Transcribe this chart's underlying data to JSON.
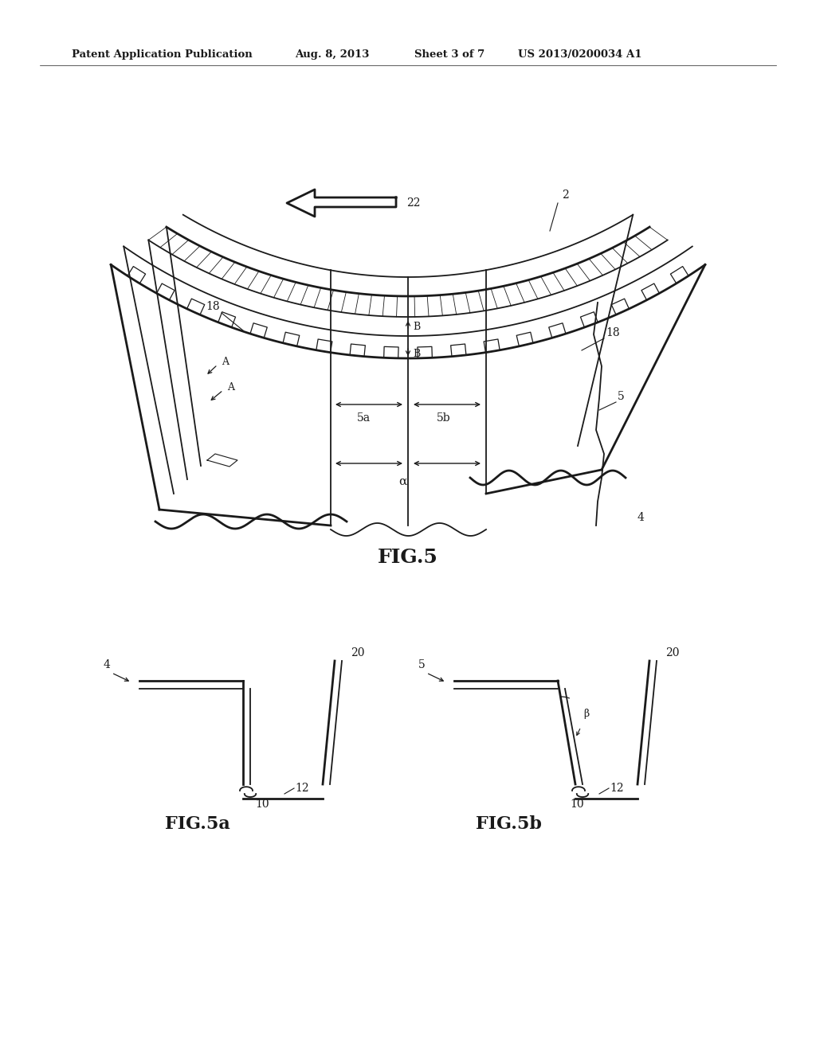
{
  "bg_color": "#ffffff",
  "line_color": "#1a1a1a",
  "header_text": "Patent Application Publication",
  "header_date": "Aug. 8, 2013",
  "header_sheet": "Sheet 3 of 7",
  "header_patent": "US 2013/0200034 A1",
  "fig5_label": "FIG.5",
  "fig5a_label": "FIG.5a",
  "fig5b_label": "FIG.5b"
}
